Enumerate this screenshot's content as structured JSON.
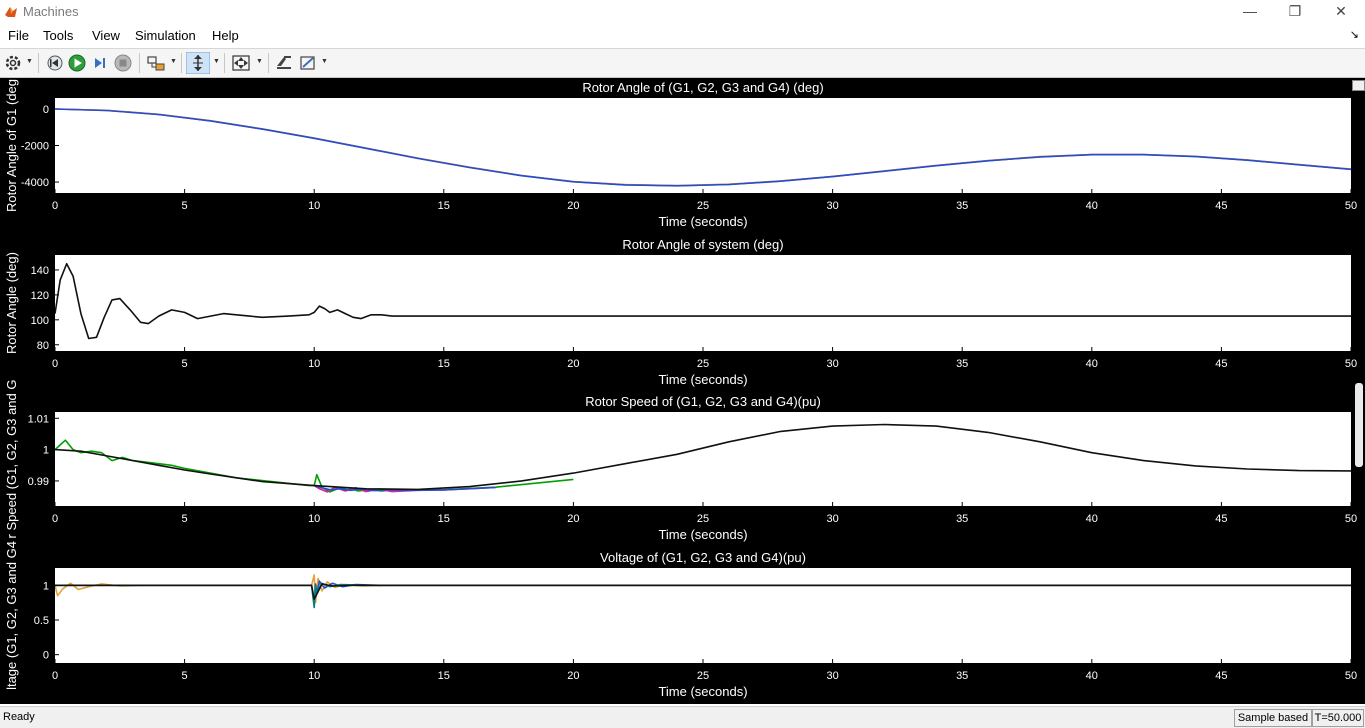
{
  "window": {
    "title": "Machines",
    "controls": {
      "minimize": "—",
      "restore": "❐",
      "close": "✕"
    }
  },
  "menu": {
    "items": [
      "File",
      "Tools",
      "View",
      "Simulation",
      "Help"
    ],
    "dock_glyph": "↘"
  },
  "toolbar": {
    "icons": [
      "settings-icon",
      "step-back-icon",
      "run-icon",
      "step-forward-icon",
      "stop-icon",
      "highlight-model-icon",
      "zoom-icon",
      "autoscale-icon",
      "legend-icon",
      "style-icon"
    ]
  },
  "status": {
    "text": "Ready",
    "mode": "Sample based",
    "time": "T=50.000"
  },
  "colors": {
    "background": "#000000",
    "axes": "#ffffff",
    "line_black": "#111111",
    "line_green": "#00a000",
    "line_magenta": "#e0209a",
    "line_blue": "#2050d0",
    "line_orange": "#e8a030",
    "line_teal": "#008080"
  },
  "chart_data": [
    {
      "type": "line",
      "title": "Rotor Angle of (G1, G2, G3 and G4) (deg)",
      "xlabel": "Time (seconds)",
      "ylabel": "Rotor Angle of G1 (deg",
      "xlim": [
        0,
        50
      ],
      "ylim": [
        -4600,
        600
      ],
      "xticks": [
        0,
        5,
        10,
        15,
        20,
        25,
        30,
        35,
        40,
        45,
        50
      ],
      "yticks": [
        0,
        -2000,
        -4000
      ],
      "series": [
        {
          "color": "#e0209a",
          "x": [
            0,
            2,
            4,
            6,
            8,
            10,
            12,
            14,
            16,
            18,
            20,
            22,
            24,
            26,
            28,
            30,
            32,
            34,
            36,
            38,
            40,
            42,
            44,
            46,
            48,
            50
          ],
          "y": [
            0,
            -80,
            -300,
            -650,
            -1100,
            -1600,
            -2150,
            -2700,
            -3200,
            -3650,
            -3980,
            -4150,
            -4200,
            -4130,
            -3950,
            -3700,
            -3400,
            -3100,
            -2830,
            -2620,
            -2500,
            -2500,
            -2600,
            -2800,
            -3050,
            -3300
          ]
        },
        {
          "color": "#e8a030",
          "x": [
            0,
            2,
            4,
            6,
            8,
            10,
            12,
            14,
            16,
            18,
            20,
            22,
            24,
            26,
            28,
            30,
            32,
            34,
            36,
            38,
            40,
            42,
            44,
            46,
            48,
            50
          ],
          "y": [
            0,
            -75,
            -290,
            -640,
            -1090,
            -1590,
            -2140,
            -2690,
            -3190,
            -3640,
            -3970,
            -4140,
            -4190,
            -4120,
            -3940,
            -3690,
            -3390,
            -3090,
            -2820,
            -2610,
            -2490,
            -2490,
            -2590,
            -2790,
            -3040,
            -3290
          ]
        },
        {
          "color": "#2050d0",
          "x": [
            0,
            2,
            4,
            6,
            8,
            10,
            12,
            14,
            16,
            18,
            20,
            22,
            24,
            26,
            28,
            30,
            32,
            34,
            36,
            38,
            40,
            42,
            44,
            46,
            48,
            50
          ],
          "y": [
            0,
            -85,
            -305,
            -655,
            -1105,
            -1605,
            -2155,
            -2705,
            -3205,
            -3655,
            -3985,
            -4155,
            -4205,
            -4135,
            -3955,
            -3705,
            -3405,
            -3105,
            -2835,
            -2625,
            -2505,
            -2505,
            -2605,
            -2805,
            -3055,
            -3305
          ]
        }
      ]
    },
    {
      "type": "line",
      "title": "Rotor Angle of system (deg)",
      "xlabel": "Time (seconds)",
      "ylabel": "Rotor Angle (deg)",
      "xlim": [
        0,
        50
      ],
      "ylim": [
        75,
        152
      ],
      "xticks": [
        0,
        5,
        10,
        15,
        20,
        25,
        30,
        35,
        40,
        45,
        50
      ],
      "yticks": [
        80,
        100,
        120,
        140
      ],
      "series": [
        {
          "color": "#111111",
          "x": [
            0,
            0.2,
            0.45,
            0.7,
            1.0,
            1.3,
            1.6,
            1.9,
            2.2,
            2.5,
            2.9,
            3.3,
            3.6,
            4.0,
            4.5,
            5.0,
            5.5,
            6.0,
            6.5,
            7.0,
            7.5,
            8.0,
            9.0,
            9.8,
            10.0,
            10.2,
            10.4,
            10.6,
            10.9,
            11.2,
            11.5,
            11.8,
            12.2,
            12.6,
            13.0,
            14.0,
            20.0,
            30.0,
            40.0,
            50.0
          ],
          "y": [
            105,
            132,
            145,
            135,
            105,
            85,
            86,
            102,
            116,
            117,
            108,
            98,
            97,
            103,
            108,
            106,
            101,
            103,
            105,
            104,
            103,
            102,
            103,
            104,
            106,
            111,
            109,
            106,
            108,
            105,
            102,
            101,
            104,
            104,
            103,
            103,
            103,
            103,
            103,
            103
          ]
        }
      ]
    },
    {
      "type": "line",
      "title": "Rotor Speed of (G1, G2, G3 and G4)(pu)",
      "xlabel": "Time (seconds)",
      "ylabel": "r Speed (G1, G2, G3 and G",
      "xlim": [
        0,
        50
      ],
      "ylim": [
        0.982,
        1.012
      ],
      "xticks": [
        0,
        5,
        10,
        15,
        20,
        25,
        30,
        35,
        40,
        45,
        50
      ],
      "yticks": [
        0.99,
        1,
        1.01
      ],
      "series": [
        {
          "color": "#00a000",
          "x": [
            0,
            0.2,
            0.4,
            0.7,
            1.0,
            1.4,
            1.8,
            2.2,
            2.6,
            3.0,
            3.5,
            4.0,
            4.5,
            5.0,
            7.0,
            9.8,
            10.0,
            10.1,
            10.3,
            10.6,
            10.9,
            11.3,
            11.7,
            12.1,
            12.6,
            13.2,
            14.0,
            15.0,
            17.0,
            20.0
          ],
          "y": [
            1.0,
            1.0015,
            1.003,
            1.0,
            0.999,
            0.9995,
            0.999,
            0.9965,
            0.9975,
            0.9965,
            0.996,
            0.9955,
            0.995,
            0.994,
            0.991,
            0.9885,
            0.9885,
            0.992,
            0.988,
            0.9865,
            0.9875,
            0.9878,
            0.9868,
            0.9872,
            0.9868,
            0.9872,
            0.9871,
            0.9872,
            0.988,
            0.9905
          ]
        },
        {
          "color": "#e0209a",
          "x": [
            10.0,
            10.2,
            10.5,
            10.8,
            11.2,
            11.6,
            12.0,
            12.5,
            13.0,
            14.0,
            15.0,
            17.0
          ],
          "y": [
            0.9885,
            0.9875,
            0.9865,
            0.988,
            0.9868,
            0.9878,
            0.9866,
            0.9874,
            0.9866,
            0.987,
            0.9871,
            0.9879
          ]
        },
        {
          "color": "#2050d0",
          "x": [
            10.0,
            10.3,
            10.6,
            11.0,
            11.4,
            11.8,
            12.3,
            12.8,
            13.5,
            15.0,
            17.0
          ],
          "y": [
            0.9885,
            0.9878,
            0.9872,
            0.9875,
            0.987,
            0.9874,
            0.9869,
            0.9872,
            0.987,
            0.9871,
            0.9879
          ]
        },
        {
          "color": "#111111",
          "x": [
            0,
            1,
            2,
            3,
            4,
            5,
            6,
            8,
            10,
            12,
            14,
            16,
            18,
            20,
            22,
            24,
            26,
            28,
            30,
            32,
            34,
            36,
            38,
            40,
            42,
            44,
            46,
            48,
            50
          ],
          "y": [
            1.0,
            0.9995,
            0.998,
            0.9965,
            0.995,
            0.9935,
            0.9922,
            0.9898,
            0.9885,
            0.9875,
            0.9873,
            0.9882,
            0.99,
            0.9925,
            0.9955,
            0.9985,
            1.0025,
            1.0058,
            1.0075,
            1.008,
            1.0075,
            1.0055,
            1.0025,
            0.999,
            0.9965,
            0.9948,
            0.9938,
            0.9933,
            0.9932
          ]
        }
      ]
    },
    {
      "type": "line",
      "title": "Voltage of (G1, G2, G3 and G4)(pu)",
      "xlabel": "Time (seconds)",
      "ylabel": "ltage (G1, G2, G3 and G4",
      "xlim": [
        0,
        50
      ],
      "ylim": [
        -0.12,
        1.25
      ],
      "xticks": [
        0,
        5,
        10,
        15,
        20,
        25,
        30,
        35,
        40,
        45,
        50
      ],
      "yticks": [
        0,
        0.5,
        1
      ],
      "series": [
        {
          "color": "#e8a030",
          "x": [
            0,
            0.1,
            0.3,
            0.6,
            0.9,
            1.3,
            1.8,
            2.5,
            3.5,
            5,
            9.9,
            10.0,
            10.05,
            10.15,
            10.3,
            10.5,
            10.8,
            11.2,
            11.8,
            13,
            20,
            30,
            40,
            50
          ],
          "y": [
            1.0,
            0.85,
            0.95,
            1.03,
            0.94,
            0.98,
            1.02,
            0.99,
            1.0,
            1.0,
            1.0,
            1.15,
            0.75,
            1.1,
            0.92,
            1.05,
            0.97,
            1.01,
            0.99,
            1.0,
            1.0,
            1.0,
            1.0,
            1.0
          ]
        },
        {
          "color": "#2050d0",
          "x": [
            0,
            9.9,
            10.0,
            10.05,
            10.1,
            10.2,
            10.4,
            10.7,
            11.1,
            11.6,
            12.5,
            50
          ],
          "y": [
            1.0,
            1.0,
            0.72,
            1.02,
            0.88,
            1.06,
            0.96,
            1.03,
            0.98,
            1.01,
            1.0,
            1.0
          ]
        },
        {
          "color": "#008080",
          "x": [
            0,
            9.9,
            10.0,
            10.05,
            10.1,
            10.3,
            10.6,
            11.0,
            12.0,
            50
          ],
          "y": [
            1.0,
            1.0,
            0.68,
            1.0,
            0.9,
            1.03,
            0.98,
            1.01,
            1.0,
            1.0
          ]
        },
        {
          "color": "#111111",
          "x": [
            0,
            9.9,
            10.0,
            10.3,
            10.7,
            11.5,
            50
          ],
          "y": [
            1.0,
            1.0,
            0.8,
            1.02,
            0.99,
            1.0,
            1.0
          ]
        }
      ]
    }
  ]
}
